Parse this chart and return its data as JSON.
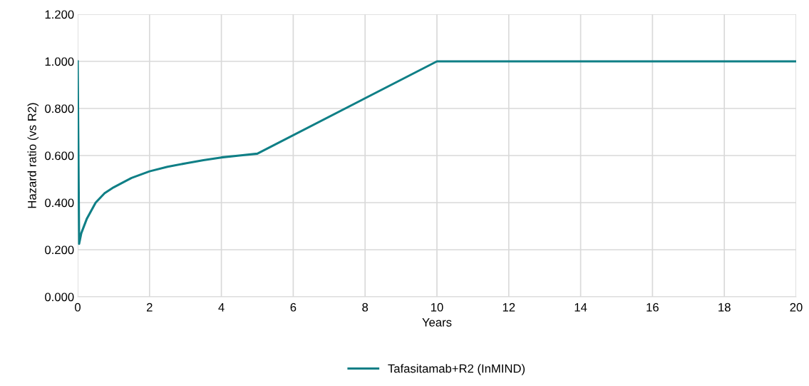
{
  "chart_data": {
    "type": "line",
    "xlabel": "Years",
    "ylabel": "Hazard ratio (vs R2)",
    "xlim": [
      0,
      20
    ],
    "ylim": [
      0,
      1.2
    ],
    "xticks": [
      0,
      2,
      4,
      6,
      8,
      10,
      12,
      14,
      16,
      18,
      20
    ],
    "yticks": [
      {
        "value": 0,
        "label": "0.000"
      },
      {
        "value": 0.2,
        "label": "0.200"
      },
      {
        "value": 0.4,
        "label": "0.400"
      },
      {
        "value": 0.6,
        "label": "0.600"
      },
      {
        "value": 0.8,
        "label": "0.800"
      },
      {
        "value": 1.0,
        "label": "1.000"
      },
      {
        "value": 1.2,
        "label": "1.200"
      }
    ],
    "grid": true,
    "legend": "bottom",
    "marker": "none",
    "line_style": "solid",
    "series": [
      {
        "name": "Tafasitamab+R2 (InMIND)",
        "color": "#0f7f86",
        "x": [
          0,
          0.04,
          0.1,
          0.25,
          0.5,
          0.75,
          1,
          1.5,
          2,
          2.5,
          3,
          3.5,
          4,
          4.5,
          5,
          10,
          20
        ],
        "values": [
          1.0,
          0.225,
          0.27,
          0.33,
          0.4,
          0.44,
          0.465,
          0.505,
          0.533,
          0.552,
          0.567,
          0.58,
          0.592,
          0.6,
          0.608,
          1.0,
          1.0
        ]
      }
    ]
  }
}
